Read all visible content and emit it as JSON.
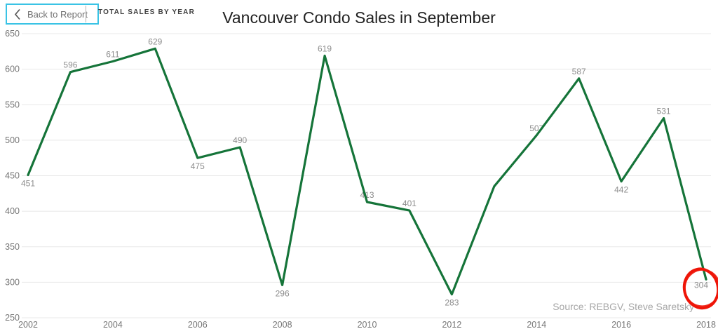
{
  "header": {
    "back_button_label": "Back to Report",
    "view_label": "TOTAL SALES BY YEAR"
  },
  "chart_data": {
    "type": "line",
    "title": "Vancouver Condo Sales in September",
    "x": [
      2002,
      2003,
      2004,
      2005,
      2006,
      2007,
      2008,
      2009,
      2010,
      2011,
      2012,
      2013,
      2014,
      2015,
      2016,
      2017,
      2018
    ],
    "values": [
      451,
      596,
      611,
      629,
      475,
      490,
      296,
      619,
      413,
      401,
      283,
      435,
      507,
      587,
      442,
      531,
      304
    ],
    "data_labels": [
      "451",
      "596",
      "611",
      "629",
      "475",
      "490",
      "296",
      "619",
      "413",
      "401",
      "283",
      "",
      "507",
      "587",
      "442",
      "531",
      "304"
    ],
    "label_placements": [
      "below",
      "above",
      "above",
      "above",
      "below",
      "above",
      "below",
      "above",
      "above",
      "above",
      "below",
      "none",
      "above",
      "above",
      "below",
      "above",
      "below-left"
    ],
    "unlabeled_points": [
      2013
    ],
    "x_ticks": [
      2002,
      2004,
      2006,
      2008,
      2010,
      2012,
      2014,
      2016,
      2018
    ],
    "x_tick_labels": [
      "2002",
      "2004",
      "2006",
      "2008",
      "2010",
      "2012",
      "2014",
      "2016",
      "2018"
    ],
    "y_ticks": [
      250,
      300,
      350,
      400,
      450,
      500,
      550,
      600,
      650
    ],
    "xlim": [
      2002,
      2018
    ],
    "ylim": [
      250,
      650
    ],
    "grid": "horizontal-only",
    "legend": "none",
    "line_color": "#157439",
    "annotation": {
      "type": "circle",
      "target_year": 2018,
      "color": "#ee1508"
    },
    "source": "Source: REBGV, Steve Saretsky"
  },
  "colors": {
    "back_button_border": "#3ac3e5",
    "gridline": "#e8e8e8",
    "axis_text": "#767676",
    "data_label_text": "#8d8d8d"
  }
}
